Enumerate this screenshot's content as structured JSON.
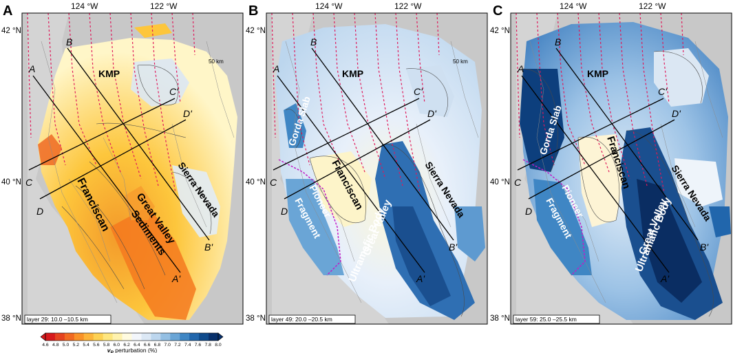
{
  "panels": [
    {
      "id": "A",
      "letter": "A",
      "layer_text": "layer 29: 10.0 –10.5 km",
      "scale_text": "50 km",
      "lon_labels": [
        "124 °W",
        "122 °W"
      ],
      "lat_labels": [
        "42 °N",
        "40 °N",
        "38 °N"
      ],
      "profile_labels": [
        "A",
        "A'",
        "B",
        "B'",
        "C",
        "C'",
        "D",
        "D'"
      ],
      "region_labels": [
        "KMP",
        "Sierra Nevada",
        "Franciscan",
        "Great Valley",
        "Sediments"
      ],
      "palette": "warm"
    },
    {
      "id": "B",
      "letter": "B",
      "layer_text": "layer 49: 20.0 –20.5 km",
      "scale_text": "50 km",
      "lon_labels": [
        "124 °W",
        "122 °W"
      ],
      "lat_labels": [
        "42 °N",
        "40 °N",
        "38 °N"
      ],
      "profile_labels": [
        "A",
        "A'",
        "B",
        "B'",
        "C",
        "C'",
        "D",
        "D'"
      ],
      "region_labels": [
        "KMP",
        "Gorda Slab",
        "Franciscan",
        "Pioneer",
        "Fragment",
        "Sierra Nevada",
        "Great Valley",
        "Ultramafic Body"
      ],
      "palette": "cool"
    },
    {
      "id": "C",
      "letter": "C",
      "layer_text": "layer 59: 25.0 –25.5 km",
      "lon_labels": [
        "124 °W",
        "122 °W"
      ],
      "lat_labels": [
        "42 °N",
        "40 °N",
        "38 °N"
      ],
      "profile_labels": [
        "A",
        "A'",
        "B",
        "B'",
        "C",
        "C'",
        "D",
        "D'"
      ],
      "region_labels": [
        "KMP",
        "Gorda Slab",
        "Franciscan",
        "Pioneer",
        "Fragment",
        "Sierra Nevada",
        "Great Valley",
        "Ultramafic Body"
      ],
      "palette": "deep"
    }
  ],
  "colorbar": {
    "title": "vP perturbation (%)",
    "title_main": "v",
    "title_sub": "P",
    "title_rest": " perturbation (%)",
    "ticks": [
      "4.6",
      "4.8",
      "5.0",
      "5.2",
      "5.4",
      "5.6",
      "5.8",
      "6.0",
      "6.2",
      "6.4",
      "6.6",
      "6.8",
      "7.0",
      "7.2",
      "7.4",
      "7.6",
      "7.8",
      "8.0"
    ],
    "colors": [
      "#d7191c",
      "#e5431f",
      "#f16a21",
      "#f99228",
      "#fcb43a",
      "#fdd153",
      "#fee67f",
      "#fff2ae",
      "#fffbe0",
      "#f3f6fb",
      "#dce8f5",
      "#bcd6ee",
      "#94bfe3",
      "#6aa5d6",
      "#3f86c4",
      "#2166ac",
      "#0f4b8c",
      "#08306b"
    ]
  }
}
